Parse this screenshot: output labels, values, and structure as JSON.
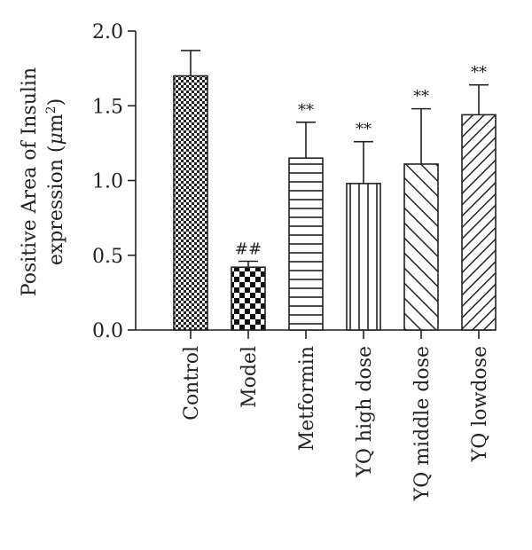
{
  "chart_data": {
    "type": "bar",
    "categories": [
      "Control",
      "Model",
      "Metformin",
      "YQ high dose",
      "YQ middle dose",
      "YQ lowdose"
    ],
    "values": [
      1.7,
      0.42,
      1.15,
      0.98,
      1.11,
      1.44
    ],
    "errors": [
      0.17,
      0.04,
      0.24,
      0.28,
      0.37,
      0.2
    ],
    "annotations": [
      "",
      "##",
      "**",
      "**",
      "**",
      "**"
    ],
    "patterns": [
      "fine-check",
      "coarse-check",
      "horizontal",
      "vertical",
      "diag-light",
      "diag-dense"
    ],
    "ylabel": {
      "line1": "Positive Area of Insulin",
      "line2_pre": "expression (",
      "unit_mu": "μ",
      "unit_m": "m",
      "unit_exp": "2",
      "line2_post": ")"
    },
    "ylim": [
      0,
      2.0
    ],
    "yticks": [
      "0.0",
      "0.5",
      "1.0",
      "1.5",
      "2.0"
    ],
    "grid": false,
    "colors": {
      "bar_stroke": "#222222",
      "fill": "#222222"
    }
  }
}
